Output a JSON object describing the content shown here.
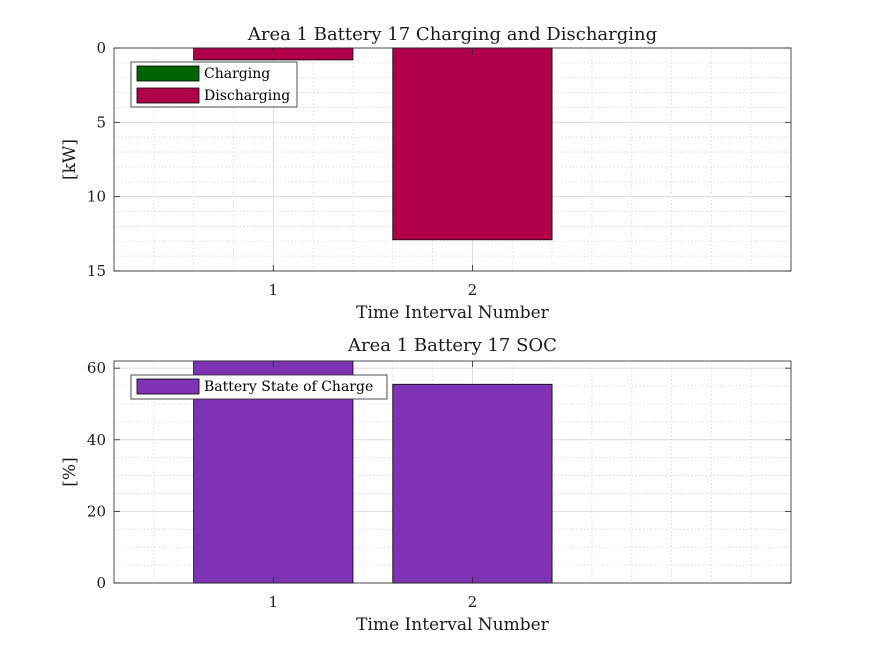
{
  "chart_data": [
    {
      "type": "bar",
      "title": "Area 1 Battery 17 Charging and Discharging",
      "xlabel": "Time Interval Number",
      "ylabel": "[kW]",
      "categories": [
        "1",
        "2"
      ],
      "x": [
        1,
        2
      ],
      "xlim": [
        0.2,
        3.6
      ],
      "ylim": [
        0,
        15
      ],
      "y_direction": "reversed",
      "yticks": [
        0,
        5,
        10,
        15
      ],
      "yminor_step": 1,
      "xminor_step": 0.2,
      "grid": true,
      "legend_position": "top-left",
      "series": [
        {
          "name": "Charging",
          "color": "#006400",
          "values": [
            0,
            0
          ]
        },
        {
          "name": "Discharging",
          "color": "#B0004A",
          "values": [
            0.8,
            12.9
          ]
        }
      ]
    },
    {
      "type": "bar",
      "title": "Area 1 Battery 17 SOC",
      "xlabel": "Time Interval Number",
      "ylabel": "[%]",
      "categories": [
        "1",
        "2"
      ],
      "x": [
        1,
        2
      ],
      "xlim": [
        0.2,
        3.6
      ],
      "ylim": [
        0,
        62
      ],
      "yticks": [
        0,
        20,
        40,
        60
      ],
      "yminor_step": 5,
      "xminor_step": 0.2,
      "grid": true,
      "legend_position": "top-left",
      "series": [
        {
          "name": "Battery State of Charge",
          "color": "#7E33B5",
          "values": [
            62,
            55.5
          ]
        }
      ]
    }
  ]
}
